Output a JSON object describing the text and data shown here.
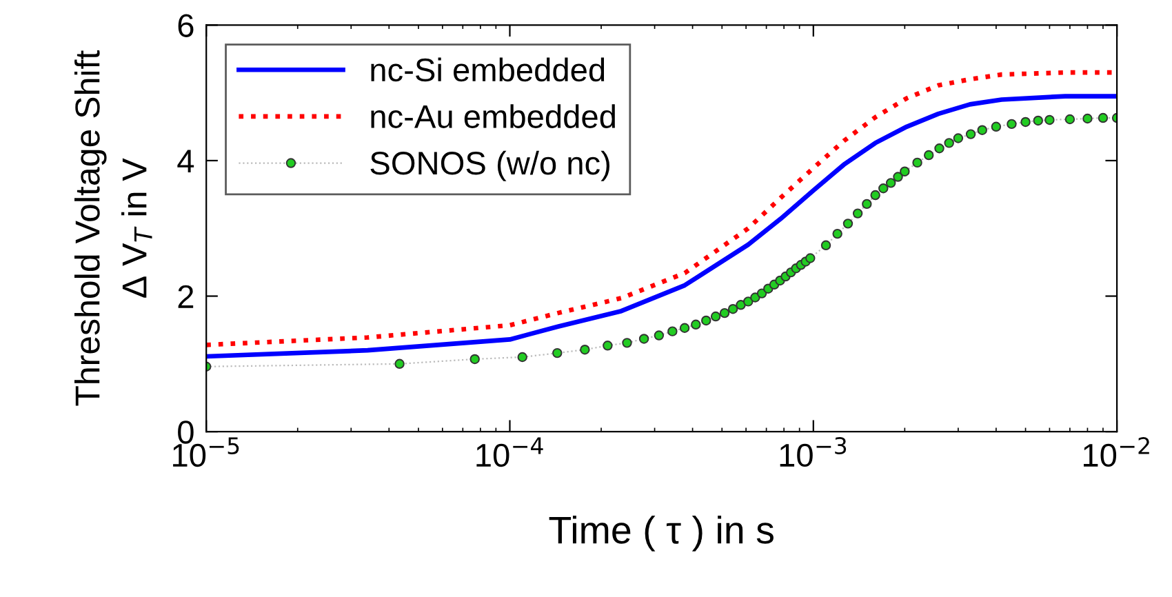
{
  "chart_data": {
    "type": "line",
    "xlabel": "Time ( τ ) in s",
    "ylabel": "Threshold Voltage Shift\nΔ V$_{T}$ in V",
    "log": "x",
    "xlim": [
      1e-05,
      0.01
    ],
    "ylim": [
      0,
      6
    ],
    "xticks": [
      {
        "value": 1e-05,
        "label": "10$^{−5}$"
      },
      {
        "value": 0.0001,
        "label": "10$^{−4}$"
      },
      {
        "value": 0.001,
        "label": "10$^{−3}$"
      },
      {
        "value": 0.01,
        "label": "10$^{−2}$"
      }
    ],
    "yticks": [
      0,
      2,
      4,
      6
    ],
    "grid": false,
    "legend": "top left",
    "series": [
      {
        "name": "nc-Si embedded",
        "color": "#0000ff",
        "line_style": "solid",
        "marker": "none",
        "x": [
          1e-05,
          3.4e-05,
          0.0001,
          0.000144,
          0.000233,
          0.000377,
          0.00061,
          0.00078,
          0.001,
          0.00126,
          0.0016,
          0.00203,
          0.00258,
          0.00328,
          0.00417,
          0.00676,
          0.01
        ],
        "values": [
          1.11,
          1.2,
          1.36,
          1.55,
          1.78,
          2.16,
          2.76,
          3.14,
          3.56,
          3.94,
          4.26,
          4.5,
          4.69,
          4.83,
          4.9,
          4.95,
          4.95
        ]
      },
      {
        "name": "nc-Au embedded",
        "color": "#ff0000",
        "line_style": "dotted",
        "marker": "none",
        "x": [
          1e-05,
          3.4e-05,
          0.0001,
          0.000144,
          0.000233,
          0.000377,
          0.00061,
          0.00078,
          0.001,
          0.00126,
          0.0016,
          0.00203,
          0.00258,
          0.00328,
          0.00417,
          0.00676,
          0.01
        ],
        "values": [
          1.28,
          1.39,
          1.57,
          1.75,
          1.97,
          2.34,
          3.0,
          3.45,
          3.89,
          4.29,
          4.64,
          4.92,
          5.11,
          5.2,
          5.27,
          5.3,
          5.3
        ]
      },
      {
        "name": "SONOS (w/o nc)",
        "color": "#22cc22",
        "line_style": "dotted",
        "marker": "circle",
        "x": [
          1e-05,
          4.333e-05,
          7.667e-05,
          0.00011,
          0.0001433,
          0.0001767,
          0.00021,
          0.0002433,
          0.0002767,
          0.00031,
          0.0003433,
          0.0003767,
          0.00041,
          0.0004433,
          0.0004767,
          0.00051,
          0.0005433,
          0.0005767,
          0.00061,
          0.0006433,
          0.0006767,
          0.00071,
          0.0007433,
          0.0007767,
          0.00081,
          0.0008433,
          0.0008767,
          0.00091,
          0.0009433,
          0.0009767,
          0.0011,
          0.0012,
          0.0013,
          0.0014,
          0.0015,
          0.0016,
          0.0017,
          0.0018,
          0.0019,
          0.002,
          0.0022,
          0.0024,
          0.0026,
          0.0028,
          0.003,
          0.0033,
          0.0036,
          0.004,
          0.0045,
          0.005,
          0.0055,
          0.006,
          0.007,
          0.008,
          0.009,
          0.01
        ],
        "values": [
          0.96,
          1.0,
          1.07,
          1.1,
          1.16,
          1.21,
          1.27,
          1.31,
          1.37,
          1.42,
          1.48,
          1.53,
          1.58,
          1.64,
          1.7,
          1.75,
          1.81,
          1.87,
          1.92,
          1.98,
          2.04,
          2.11,
          2.17,
          2.23,
          2.29,
          2.35,
          2.41,
          2.46,
          2.51,
          2.56,
          2.75,
          2.92,
          3.07,
          3.22,
          3.36,
          3.49,
          3.59,
          3.67,
          3.76,
          3.84,
          3.97,
          4.08,
          4.18,
          4.26,
          4.33,
          4.39,
          4.45,
          4.5,
          4.54,
          4.57,
          4.59,
          4.6,
          4.61,
          4.62,
          4.63,
          4.63
        ]
      }
    ]
  }
}
